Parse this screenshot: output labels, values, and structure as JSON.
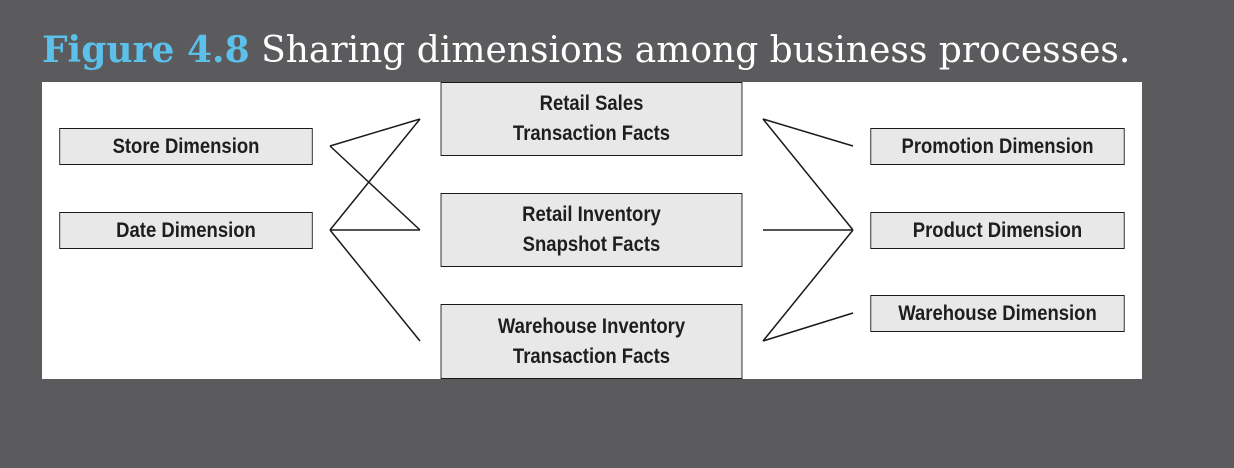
{
  "caption": {
    "figure_label": "Figure 4.8",
    "text": "Sharing dimensions among business processes."
  },
  "diagram": {
    "left_dimensions": [
      {
        "id": "store",
        "label": "Store Dimension"
      },
      {
        "id": "date",
        "label": "Date Dimension"
      }
    ],
    "fact_tables": [
      {
        "id": "retail_sales",
        "line1": "Retail Sales",
        "line2": "Transaction Facts"
      },
      {
        "id": "retail_inventory",
        "line1": "Retail Inventory",
        "line2": "Snapshot Facts"
      },
      {
        "id": "warehouse_inventory",
        "line1": "Warehouse Inventory",
        "line2": "Transaction Facts"
      }
    ],
    "right_dimensions": [
      {
        "id": "promotion",
        "label": "Promotion Dimension"
      },
      {
        "id": "product",
        "label": "Product Dimension"
      },
      {
        "id": "warehouse",
        "label": "Warehouse Dimension"
      }
    ],
    "connections": [
      [
        "store",
        "retail_sales"
      ],
      [
        "store",
        "retail_inventory"
      ],
      [
        "date",
        "retail_sales"
      ],
      [
        "date",
        "retail_inventory"
      ],
      [
        "date",
        "warehouse_inventory"
      ],
      [
        "retail_sales",
        "promotion"
      ],
      [
        "retail_sales",
        "product"
      ],
      [
        "retail_inventory",
        "product"
      ],
      [
        "warehouse_inventory",
        "product"
      ],
      [
        "warehouse_inventory",
        "warehouse"
      ]
    ]
  },
  "colors": {
    "background": "#5b5b5d",
    "figure_label": "#5bc0ea",
    "caption_text": "#ffffff",
    "panel": "#ffffff",
    "box_fill": "#e8e8e8",
    "line": "#1a1a1a"
  }
}
